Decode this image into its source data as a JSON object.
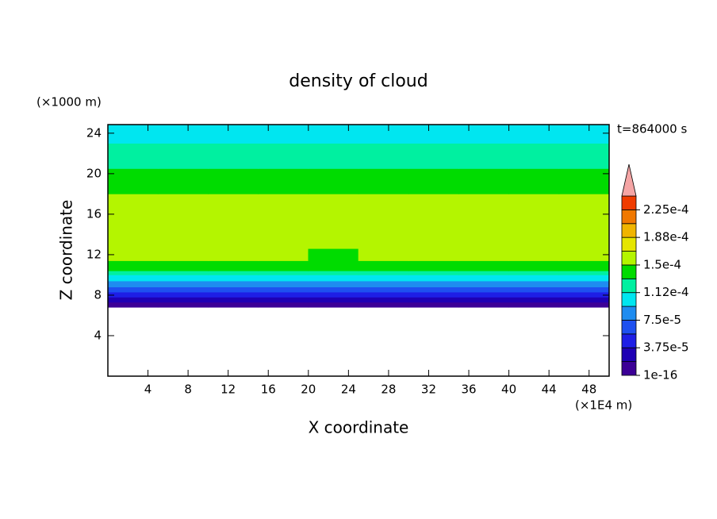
{
  "chart_data": {
    "type": "contour",
    "title": "density of cloud",
    "y_unit": "(×1000 m)",
    "x_unit": "(×1E4 m)",
    "time_label": "t=864000 s",
    "xlabel": "X coordinate",
    "ylabel": "Z coordinate",
    "xlim": [
      0,
      50
    ],
    "ylim": [
      0,
      24.85
    ],
    "xticks": [
      4,
      8,
      12,
      16,
      20,
      24,
      28,
      32,
      36,
      40,
      44,
      48
    ],
    "yticks": [
      4,
      8,
      12,
      16,
      20,
      24
    ],
    "x_bins": [
      0,
      5,
      10,
      15,
      20,
      25,
      30,
      35,
      40,
      45,
      50
    ],
    "y_bins": [
      6.8,
      7.3,
      7.8,
      8.3,
      8.8,
      9.4,
      10.0,
      10.4,
      11.4,
      12.6,
      16.8,
      18.0,
      20.5,
      21.8,
      23.0,
      24.85
    ],
    "values": [
      [
        1e-05,
        1e-05,
        1e-05,
        1e-05,
        1e-05,
        1e-05,
        1e-05,
        1e-05,
        1e-05,
        1e-05
      ],
      [
        2.8e-05,
        2.8e-05,
        2.8e-05,
        2.8e-05,
        2.8e-05,
        2.8e-05,
        2.8e-05,
        2.8e-05,
        2.8e-05,
        2.8e-05
      ],
      [
        4.6e-05,
        4.6e-05,
        4.6e-05,
        4.6e-05,
        4.6e-05,
        4.6e-05,
        4.6e-05,
        4.6e-05,
        4.6e-05,
        4.6e-05
      ],
      [
        6.5e-05,
        6.5e-05,
        6.5e-05,
        6.5e-05,
        6.5e-05,
        6.5e-05,
        6.5e-05,
        6.5e-05,
        6.5e-05,
        6.5e-05
      ],
      [
        8.5e-05,
        8.5e-05,
        8.5e-05,
        8.5e-05,
        8.5e-05,
        8.5e-05,
        8.5e-05,
        8.5e-05,
        8.5e-05,
        8.5e-05
      ],
      [
        0.0001,
        0.0001,
        0.0001,
        0.0001,
        0.0001,
        0.0001,
        0.0001,
        0.0001,
        0.0001,
        0.0001
      ],
      [
        0.00012,
        0.00012,
        0.00012,
        0.00012,
        0.00012,
        0.00012,
        0.00012,
        0.00012,
        0.00012,
        0.00012
      ],
      [
        0.00014,
        0.00014,
        0.00014,
        0.00014,
        0.00014,
        0.00014,
        0.00014,
        0.00014,
        0.00014,
        0.00014
      ],
      [
        0.000155,
        0.000155,
        0.000155,
        0.000155,
        0.000145,
        0.000155,
        0.000155,
        0.000155,
        0.000155,
        0.000155
      ],
      [
        0.000162,
        0.000162,
        0.000162,
        0.000162,
        0.000162,
        0.00016,
        0.000162,
        0.000162,
        0.000162,
        0.00016
      ],
      [
        0.000155,
        0.000155,
        0.000155,
        0.000155,
        0.000155,
        0.000155,
        0.000155,
        0.000155,
        0.000155,
        0.000155
      ],
      [
        0.00014,
        0.00014,
        0.00014,
        0.00014,
        0.00014,
        0.00014,
        0.00014,
        0.00014,
        0.00014,
        0.00014
      ],
      [
        0.000125,
        0.000125,
        0.000125,
        0.000125,
        0.000125,
        0.000125,
        0.000125,
        0.000125,
        0.000125,
        0.000125
      ],
      [
        0.000115,
        0.000115,
        0.000115,
        0.000115,
        0.000115,
        0.000115,
        0.000115,
        0.000115,
        0.000115,
        0.000115
      ],
      [
        0.0001,
        0.0001,
        0.0001,
        0.0001,
        0.0001,
        0.0001,
        0.0001,
        0.0001,
        0.0001,
        0.0001
      ]
    ],
    "levels": [
      1e-16,
      1.875e-05,
      3.75e-05,
      5.625e-05,
      7.5e-05,
      9.375e-05,
      0.0001125,
      0.00013125,
      0.00015,
      0.00016875,
      0.0001875,
      0.00020625,
      0.000225,
      0.00024375
    ],
    "colors": [
      "#3c0096",
      "#1e00b4",
      "#1e1ee6",
      "#1e50f0",
      "#1e8cf0",
      "#00e6f0",
      "#00f0a0",
      "#00dc00",
      "#b4f500",
      "#e6e600",
      "#f0b400",
      "#f07800",
      "#f03c00"
    ],
    "extend_color": "#f5a5a5",
    "cbar_ticks": [
      1e-16,
      {
        "value": 3.75e-05,
        "label": "3.75e-5"
      },
      {
        "value": 7.5e-05,
        "label": "7.5e-5"
      },
      {
        "value": 0.0001125,
        "label": "1.12e-4"
      },
      {
        "value": 0.00015,
        "label": "1.5e-4"
      },
      {
        "value": 0.0001875,
        "label": "1.88e-4"
      },
      {
        "value": 0.000225,
        "label": "2.25e-4"
      }
    ]
  }
}
